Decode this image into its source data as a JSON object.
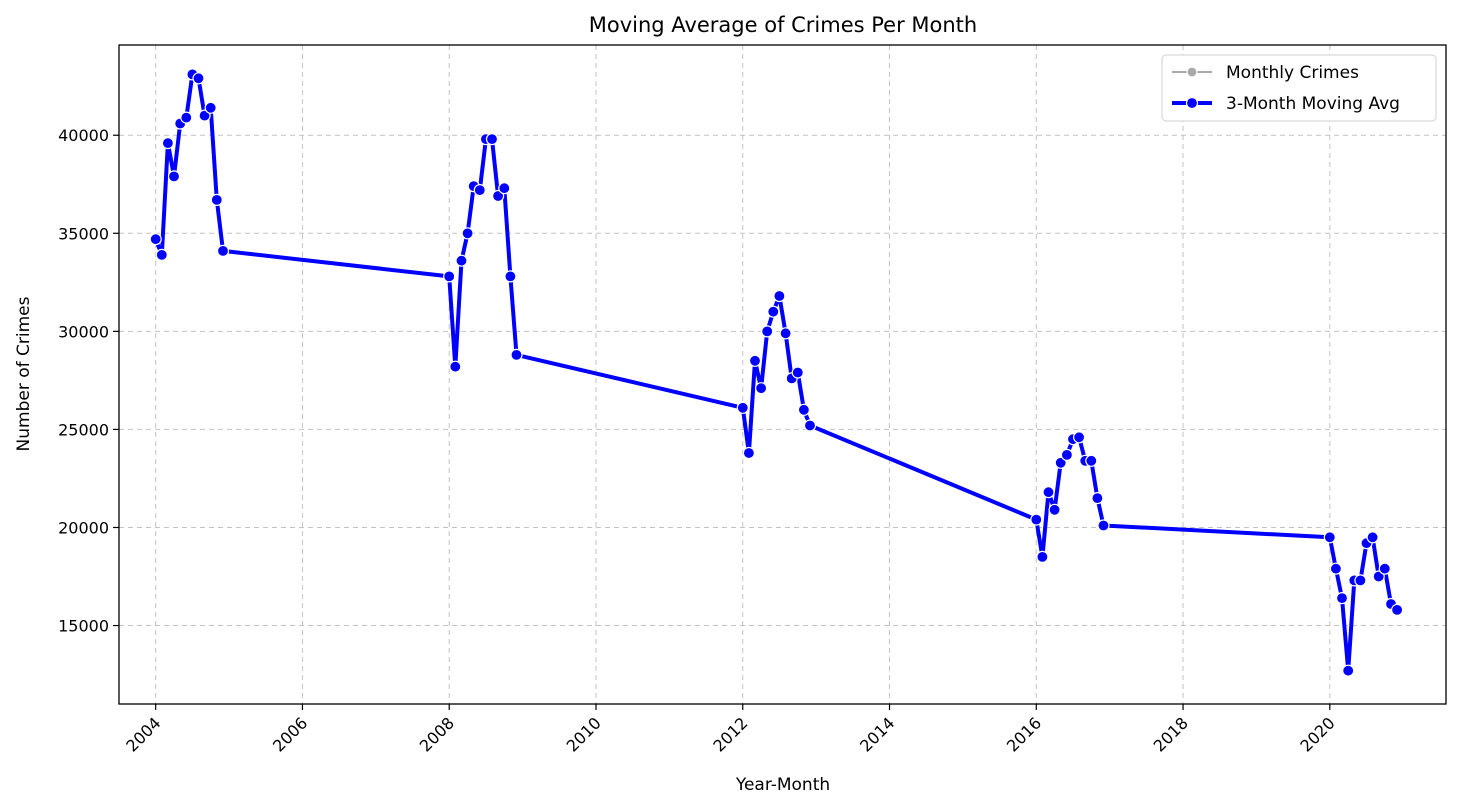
{
  "chart_data": {
    "type": "line",
    "title": "Moving Average of Crimes Per Month",
    "xlabel": "Year-Month",
    "ylabel": "Number of Crimes",
    "xlim": [
      "2003-07-01",
      "2021-08-01"
    ],
    "ylim": [
      11000,
      44600
    ],
    "x_ticks": [
      "2004",
      "2006",
      "2008",
      "2010",
      "2012",
      "2014",
      "2016",
      "2018",
      "2020"
    ],
    "y_ticks": [
      15000,
      20000,
      25000,
      30000,
      35000,
      40000
    ],
    "grid": true,
    "legend": "top-right",
    "series": [
      {
        "name": "Monthly Crimes",
        "color": "#a9a9a9",
        "x": [],
        "y": []
      },
      {
        "name": "3-Month Moving Avg",
        "color": "#0000ff",
        "x": [
          "2004-01",
          "2004-02",
          "2004-03",
          "2004-04",
          "2004-05",
          "2004-06",
          "2004-07",
          "2004-08",
          "2004-09",
          "2004-10",
          "2004-11",
          "2004-12",
          "2008-01",
          "2008-02",
          "2008-03",
          "2008-04",
          "2008-05",
          "2008-06",
          "2008-07",
          "2008-08",
          "2008-09",
          "2008-10",
          "2008-11",
          "2008-12",
          "2012-01",
          "2012-02",
          "2012-03",
          "2012-04",
          "2012-05",
          "2012-06",
          "2012-07",
          "2012-08",
          "2012-09",
          "2012-10",
          "2012-11",
          "2012-12",
          "2016-01",
          "2016-02",
          "2016-03",
          "2016-04",
          "2016-05",
          "2016-06",
          "2016-07",
          "2016-08",
          "2016-09",
          "2016-10",
          "2016-11",
          "2016-12",
          "2020-01",
          "2020-02",
          "2020-03",
          "2020-04",
          "2020-05",
          "2020-06",
          "2020-07",
          "2020-08",
          "2020-09",
          "2020-10",
          "2020-11",
          "2020-12"
        ],
        "y": [
          34700,
          33900,
          39600,
          37900,
          40600,
          40900,
          43100,
          42900,
          41000,
          41400,
          36700,
          34100,
          32800,
          28200,
          33600,
          35000,
          37400,
          37200,
          39800,
          39800,
          36900,
          37300,
          32800,
          28800,
          26100,
          23800,
          28500,
          27100,
          30000,
          31000,
          31800,
          29900,
          27600,
          27900,
          26000,
          25200,
          20400,
          18500,
          21800,
          20900,
          23300,
          23700,
          24500,
          24600,
          23400,
          23400,
          21500,
          20100,
          19500,
          17900,
          16400,
          12700,
          17300,
          17300,
          19200,
          19500,
          17500,
          17900,
          16100,
          15800
        ]
      }
    ]
  }
}
